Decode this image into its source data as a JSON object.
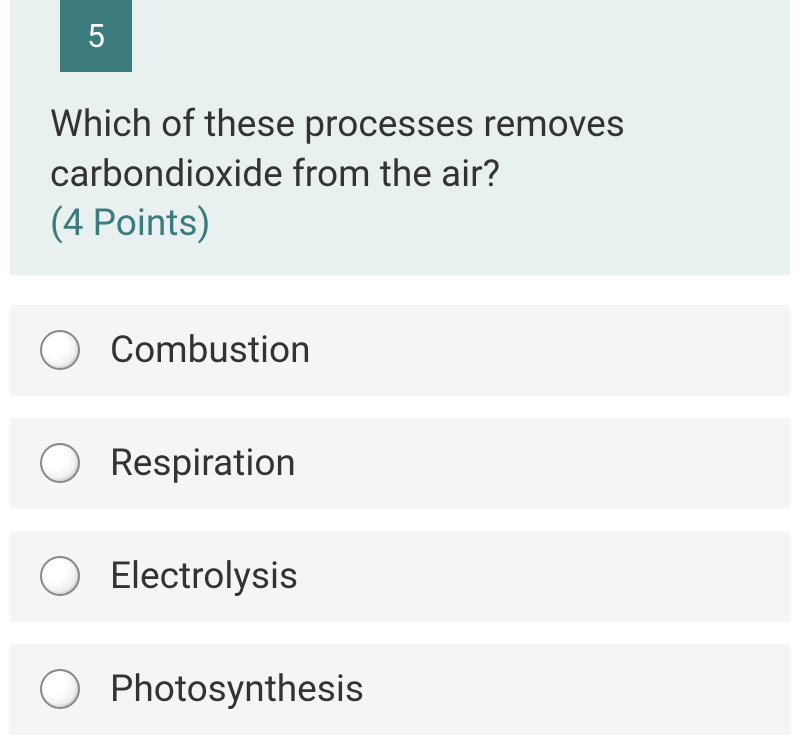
{
  "question": {
    "number": "5",
    "text": "Which of these processes removes carbondioxide from the air?",
    "points_label": "(4 Points)"
  },
  "options": [
    {
      "label": "Combustion"
    },
    {
      "label": "Respiration"
    },
    {
      "label": "Electrolysis"
    },
    {
      "label": "Photosynthesis"
    }
  ],
  "colors": {
    "header_bg": "#e9f0f0",
    "badge_bg": "#3b7b7d",
    "badge_text": "#ffffff",
    "question_text": "#333333",
    "points_text": "#3b7b7d",
    "option_bg": "#f5f5f5",
    "option_text": "#333333",
    "radio_border": "#888888"
  },
  "typography": {
    "question_fontsize": 37,
    "badge_fontsize": 32,
    "option_fontsize": 37
  }
}
